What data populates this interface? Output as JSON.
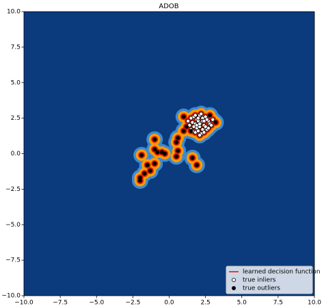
{
  "chart_data": {
    "type": "scatter",
    "title": "ADOB",
    "background": "#0b3b7d",
    "decision_function": {
      "name": "learned decision function",
      "color": "#ff0000"
    },
    "series": [
      {
        "name": "true inliers",
        "color": "#ffffff",
        "edgecolor": "#000000",
        "x": [
          1.5,
          1.7,
          1.9,
          2.1,
          2.3,
          2.5,
          2.7,
          1.6,
          1.8,
          2.0,
          2.2,
          2.4,
          2.6,
          2.8,
          1.4,
          1.7,
          1.9,
          2.1,
          2.3,
          2.5,
          2.9,
          1.6,
          1.8,
          2.0,
          2.2,
          2.4,
          2.6,
          1.5,
          1.9,
          2.1,
          2.3,
          2.7,
          2.0,
          2.2,
          1.8,
          2.4,
          2.5,
          1.3,
          3.0,
          2.1
        ],
        "y": [
          2.5,
          2.6,
          2.4,
          2.7,
          2.5,
          2.6,
          2.3,
          2.2,
          2.1,
          2.3,
          2.2,
          2.0,
          2.4,
          2.1,
          2.0,
          1.9,
          1.8,
          1.9,
          1.7,
          1.8,
          2.0,
          1.6,
          1.5,
          1.6,
          1.4,
          1.5,
          1.7,
          1.7,
          2.0,
          2.1,
          2.3,
          1.8,
          2.5,
          2.8,
          2.7,
          2.3,
          1.9,
          2.3,
          2.4,
          1.3
        ]
      },
      {
        "name": "true outliers",
        "color": "#000000",
        "edgecolor": "#000000",
        "x": [
          1.0,
          1.5,
          1.2,
          2.8,
          3.2,
          1.0,
          0.6,
          0.5,
          -1.0,
          -1.0,
          -0.5,
          -0.3,
          -0.8,
          0.6,
          0.5,
          1.6,
          1.9,
          -1.9,
          -1.5,
          -1.3,
          -1.7,
          -2.0,
          -2.0,
          -1.0
        ],
        "y": [
          2.6,
          1.6,
          1.9,
          2.7,
          2.2,
          1.6,
          1.1,
          0.8,
          1.0,
          0.3,
          0.1,
          0.0,
          0.1,
          0.2,
          -0.2,
          -0.3,
          -0.8,
          -0.1,
          -0.8,
          -1.2,
          -1.4,
          -1.7,
          -1.9,
          -0.7
        ]
      }
    ],
    "xlim": [
      -10,
      10
    ],
    "ylim": [
      -10,
      10
    ],
    "xticks": [
      {
        "value": -10,
        "label": "−10.0"
      },
      {
        "value": -7.5,
        "label": "−7.5"
      },
      {
        "value": -5,
        "label": "−5.0"
      },
      {
        "value": -2.5,
        "label": "−2.5"
      },
      {
        "value": 0,
        "label": "0.0"
      },
      {
        "value": 2.5,
        "label": "2.5"
      },
      {
        "value": 5,
        "label": "5.0"
      },
      {
        "value": 7.5,
        "label": "7.5"
      },
      {
        "value": 10,
        "label": "10.0"
      }
    ],
    "yticks": [
      {
        "value": -10,
        "label": "−10.0"
      },
      {
        "value": -7.5,
        "label": "−7.5"
      },
      {
        "value": -5,
        "label": "−5.0"
      },
      {
        "value": -2.5,
        "label": "−2.5"
      },
      {
        "value": 0,
        "label": "0.0"
      },
      {
        "value": 2.5,
        "label": "2.5"
      },
      {
        "value": 5,
        "label": "5.0"
      },
      {
        "value": 7.5,
        "label": "7.5"
      },
      {
        "value": 10,
        "label": "10.0"
      }
    ],
    "legend": "lower right"
  }
}
